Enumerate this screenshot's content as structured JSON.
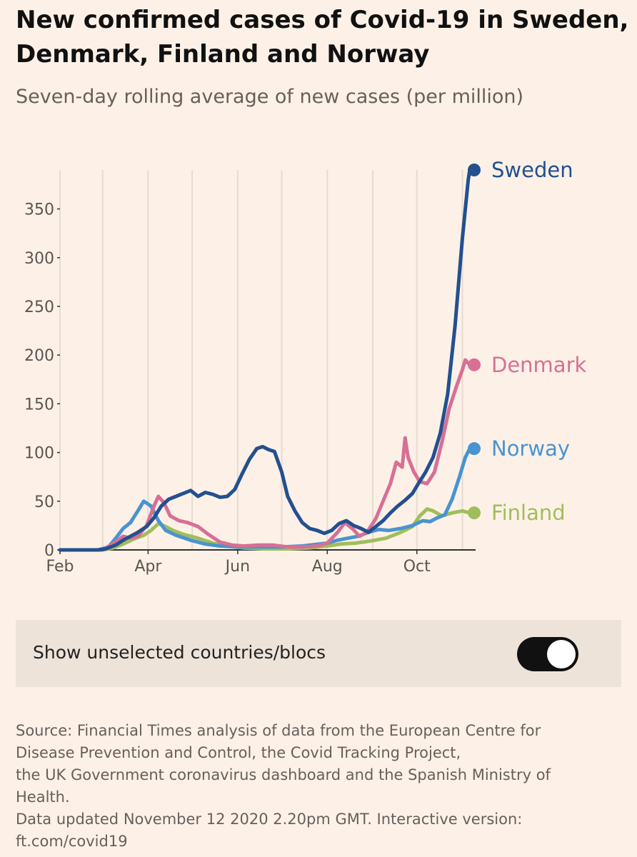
{
  "header": {
    "title_line1": "New confirmed cases of Covid-19 in Sweden,",
    "title_line2": "Denmark, Finland and Norway",
    "subtitle": "Seven-day rolling average of new cases (per million)"
  },
  "chart_data": {
    "type": "line",
    "title": "New confirmed cases of Covid-19 in Sweden, Denmark, Finland and Norway",
    "subtitle": "Seven-day rolling average of new cases (per million)",
    "xlabel": "",
    "ylabel": "",
    "x_tick_labels": [
      "Feb",
      "Apr",
      "Jun",
      "Aug",
      "Oct"
    ],
    "y_ticks": [
      0,
      50,
      100,
      150,
      200,
      250,
      300,
      350
    ],
    "ylim": [
      0,
      390
    ],
    "grid": "vertical gridlines at month boundaries",
    "legend": "labels at line ends (right)",
    "colors": {
      "Sweden": "#23508f",
      "Denmark": "#d86f95",
      "Norway": "#4a93d0",
      "Finland": "#9fbe5b",
      "grid": "#e5dbd0",
      "axis": "#33302e"
    },
    "series": [
      {
        "name": "Sweden",
        "points": [
          [
            "2020-02-01",
            0
          ],
          [
            "2020-02-27",
            0
          ],
          [
            "2020-03-03",
            1
          ],
          [
            "2020-03-10",
            5
          ],
          [
            "2020-03-15",
            10
          ],
          [
            "2020-03-20",
            14
          ],
          [
            "2020-03-25",
            18
          ],
          [
            "2020-03-31",
            24
          ],
          [
            "2020-04-05",
            33
          ],
          [
            "2020-04-10",
            45
          ],
          [
            "2020-04-15",
            52
          ],
          [
            "2020-04-20",
            55
          ],
          [
            "2020-04-25",
            58
          ],
          [
            "2020-04-30",
            61
          ],
          [
            "2020-05-05",
            55
          ],
          [
            "2020-05-10",
            59
          ],
          [
            "2020-05-15",
            57
          ],
          [
            "2020-05-20",
            54
          ],
          [
            "2020-05-25",
            55
          ],
          [
            "2020-05-30",
            62
          ],
          [
            "2020-06-04",
            78
          ],
          [
            "2020-06-09",
            93
          ],
          [
            "2020-06-14",
            104
          ],
          [
            "2020-06-18",
            106
          ],
          [
            "2020-06-22",
            103
          ],
          [
            "2020-06-26",
            101
          ],
          [
            "2020-07-01",
            80
          ],
          [
            "2020-07-05",
            55
          ],
          [
            "2020-07-10",
            40
          ],
          [
            "2020-07-15",
            28
          ],
          [
            "2020-07-20",
            22
          ],
          [
            "2020-07-25",
            20
          ],
          [
            "2020-07-30",
            17
          ],
          [
            "2020-08-04",
            20
          ],
          [
            "2020-08-09",
            27
          ],
          [
            "2020-08-14",
            30
          ],
          [
            "2020-08-19",
            25
          ],
          [
            "2020-08-24",
            22
          ],
          [
            "2020-08-29",
            18
          ],
          [
            "2020-09-03",
            24
          ],
          [
            "2020-09-08",
            30
          ],
          [
            "2020-09-13",
            38
          ],
          [
            "2020-09-18",
            45
          ],
          [
            "2020-09-23",
            51
          ],
          [
            "2020-09-28",
            58
          ],
          [
            "2020-10-02",
            68
          ],
          [
            "2020-10-07",
            80
          ],
          [
            "2020-10-12",
            95
          ],
          [
            "2020-10-17",
            120
          ],
          [
            "2020-10-22",
            160
          ],
          [
            "2020-10-27",
            230
          ],
          [
            "2020-11-01",
            320
          ],
          [
            "2020-11-05",
            380
          ],
          [
            "2020-11-06",
            390
          ]
        ]
      },
      {
        "name": "Denmark",
        "points": [
          [
            "2020-02-01",
            0
          ],
          [
            "2020-03-01",
            0
          ],
          [
            "2020-03-10",
            8
          ],
          [
            "2020-03-15",
            14
          ],
          [
            "2020-03-20",
            12
          ],
          [
            "2020-03-25",
            14
          ],
          [
            "2020-03-31",
            25
          ],
          [
            "2020-04-05",
            45
          ],
          [
            "2020-04-08",
            55
          ],
          [
            "2020-04-12",
            48
          ],
          [
            "2020-04-16",
            35
          ],
          [
            "2020-04-22",
            30
          ],
          [
            "2020-04-28",
            28
          ],
          [
            "2020-05-05",
            24
          ],
          [
            "2020-05-12",
            16
          ],
          [
            "2020-05-20",
            8
          ],
          [
            "2020-05-28",
            5
          ],
          [
            "2020-06-05",
            4
          ],
          [
            "2020-06-15",
            5
          ],
          [
            "2020-06-25",
            5
          ],
          [
            "2020-07-05",
            3
          ],
          [
            "2020-07-15",
            3
          ],
          [
            "2020-07-25",
            4
          ],
          [
            "2020-08-01",
            7
          ],
          [
            "2020-08-08",
            18
          ],
          [
            "2020-08-13",
            28
          ],
          [
            "2020-08-18",
            22
          ],
          [
            "2020-08-23",
            14
          ],
          [
            "2020-08-28",
            18
          ],
          [
            "2020-09-03",
            32
          ],
          [
            "2020-09-08",
            50
          ],
          [
            "2020-09-13",
            68
          ],
          [
            "2020-09-17",
            90
          ],
          [
            "2020-09-21",
            85
          ],
          [
            "2020-09-23",
            115
          ],
          [
            "2020-09-25",
            95
          ],
          [
            "2020-09-29",
            80
          ],
          [
            "2020-10-03",
            70
          ],
          [
            "2020-10-08",
            68
          ],
          [
            "2020-10-13",
            80
          ],
          [
            "2020-10-18",
            110
          ],
          [
            "2020-10-23",
            145
          ],
          [
            "2020-10-28",
            168
          ],
          [
            "2020-11-01",
            185
          ],
          [
            "2020-11-03",
            195
          ],
          [
            "2020-11-06",
            190
          ]
        ]
      },
      {
        "name": "Norway",
        "points": [
          [
            "2020-02-01",
            0
          ],
          [
            "2020-02-27",
            0
          ],
          [
            "2020-03-05",
            3
          ],
          [
            "2020-03-10",
            12
          ],
          [
            "2020-03-15",
            22
          ],
          [
            "2020-03-20",
            28
          ],
          [
            "2020-03-25",
            40
          ],
          [
            "2020-03-29",
            50
          ],
          [
            "2020-04-03",
            45
          ],
          [
            "2020-04-08",
            30
          ],
          [
            "2020-04-13",
            20
          ],
          [
            "2020-04-20",
            15
          ],
          [
            "2020-04-30",
            10
          ],
          [
            "2020-05-10",
            6
          ],
          [
            "2020-05-20",
            4
          ],
          [
            "2020-06-01",
            3
          ],
          [
            "2020-06-15",
            3
          ],
          [
            "2020-07-01",
            3
          ],
          [
            "2020-07-15",
            4
          ],
          [
            "2020-08-01",
            7
          ],
          [
            "2020-08-08",
            10
          ],
          [
            "2020-08-15",
            12
          ],
          [
            "2020-08-22",
            14
          ],
          [
            "2020-08-29",
            18
          ],
          [
            "2020-09-05",
            21
          ],
          [
            "2020-09-12",
            20
          ],
          [
            "2020-09-20",
            22
          ],
          [
            "2020-09-28",
            25
          ],
          [
            "2020-10-05",
            30
          ],
          [
            "2020-10-10",
            29
          ],
          [
            "2020-10-15",
            33
          ],
          [
            "2020-10-20",
            36
          ],
          [
            "2020-10-25",
            52
          ],
          [
            "2020-10-30",
            75
          ],
          [
            "2020-11-03",
            95
          ],
          [
            "2020-11-06",
            104
          ]
        ]
      },
      {
        "name": "Finland",
        "points": [
          [
            "2020-02-01",
            0
          ],
          [
            "2020-03-01",
            0
          ],
          [
            "2020-03-08",
            2
          ],
          [
            "2020-03-15",
            6
          ],
          [
            "2020-03-22",
            11
          ],
          [
            "2020-03-29",
            15
          ],
          [
            "2020-04-03",
            20
          ],
          [
            "2020-04-08",
            27
          ],
          [
            "2020-04-13",
            24
          ],
          [
            "2020-04-18",
            20
          ],
          [
            "2020-04-25",
            16
          ],
          [
            "2020-05-05",
            12
          ],
          [
            "2020-05-15",
            7
          ],
          [
            "2020-05-25",
            4
          ],
          [
            "2020-06-05",
            2
          ],
          [
            "2020-06-20",
            1
          ],
          [
            "2020-07-05",
            1
          ],
          [
            "2020-07-20",
            2
          ],
          [
            "2020-08-01",
            4
          ],
          [
            "2020-08-10",
            6
          ],
          [
            "2020-08-20",
            7
          ],
          [
            "2020-08-30",
            9
          ],
          [
            "2020-09-10",
            12
          ],
          [
            "2020-09-20",
            18
          ],
          [
            "2020-09-28",
            24
          ],
          [
            "2020-10-03",
            35
          ],
          [
            "2020-10-08",
            42
          ],
          [
            "2020-10-12",
            40
          ],
          [
            "2020-10-18",
            35
          ],
          [
            "2020-10-25",
            38
          ],
          [
            "2020-11-01",
            40
          ],
          [
            "2020-11-06",
            38
          ]
        ]
      }
    ]
  },
  "toggle": {
    "label": "Show unselected countries/blocs",
    "state": "on"
  },
  "footer": {
    "source_lines": [
      "Source: Financial Times analysis of data from the European Centre for",
      "Disease Prevention and Control, the Covid Tracking Project,",
      "the UK Government coronavirus dashboard and the Spanish Ministry of",
      "Health."
    ],
    "updated_lines": [
      "Data updated November 12 2020 2.20pm GMT. Interactive version:",
      "ft.com/covid19"
    ]
  }
}
